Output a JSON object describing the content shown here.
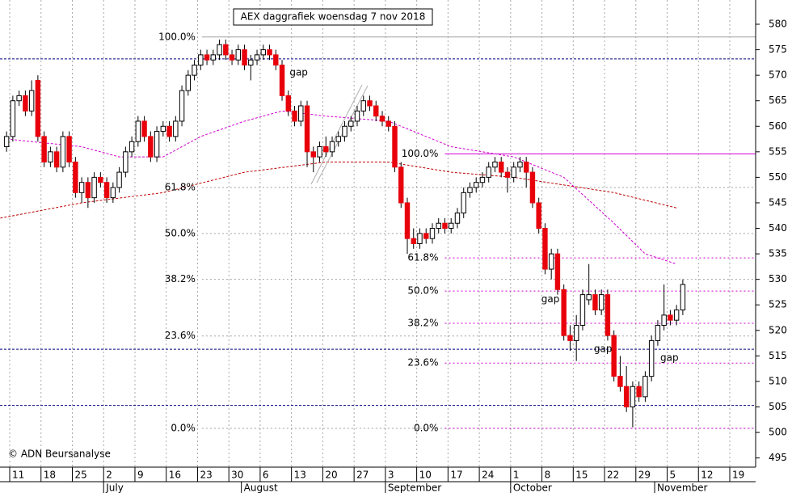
{
  "chart_data": {
    "type": "candlestick",
    "title": "AEX daggrafiek woensdag 7 nov 2018",
    "copyright": "© ADN Beursanalyse",
    "up_color": "#ffffff",
    "down_color": "#e8000b",
    "ylim": [
      493.2,
      584.75
    ],
    "yticks": [
      495,
      500,
      505,
      510,
      515,
      520,
      525,
      530,
      535,
      540,
      545,
      550,
      555,
      560,
      565,
      570,
      575,
      580
    ],
    "xlim": [
      -1.05,
      119.63
    ],
    "xticks": [
      {
        "value": 1,
        "label": "11"
      },
      {
        "value": 6,
        "label": "18"
      },
      {
        "value": 11,
        "label": "25"
      },
      {
        "value": 16,
        "label": "2"
      },
      {
        "value": 21,
        "label": "9"
      },
      {
        "value": 26,
        "label": "16"
      },
      {
        "value": 31,
        "label": "23"
      },
      {
        "value": 36,
        "label": "30"
      },
      {
        "value": 41,
        "label": "6"
      },
      {
        "value": 46,
        "label": "13"
      },
      {
        "value": 51,
        "label": "20"
      },
      {
        "value": 56,
        "label": "27"
      },
      {
        "value": 61,
        "label": "3"
      },
      {
        "value": 66,
        "label": "10"
      },
      {
        "value": 71,
        "label": "17"
      },
      {
        "value": 76,
        "label": "24"
      },
      {
        "value": 81,
        "label": "1"
      },
      {
        "value": 86,
        "label": "8"
      },
      {
        "value": 91,
        "label": "15"
      },
      {
        "value": 96,
        "label": "22"
      },
      {
        "value": 101,
        "label": "29"
      },
      {
        "value": 106,
        "label": "5"
      },
      {
        "value": 111,
        "label": "12"
      },
      {
        "value": 116,
        "label": "19"
      }
    ],
    "months": [
      {
        "value": 16,
        "label": "July"
      },
      {
        "value": 38,
        "label": "August"
      },
      {
        "value": 61,
        "label": "September"
      },
      {
        "value": 81,
        "label": "October"
      },
      {
        "value": 104,
        "label": "November"
      }
    ],
    "candles": [
      [
        556,
        559,
        555,
        558
      ],
      [
        558,
        566,
        557,
        565
      ],
      [
        565,
        567,
        564,
        566
      ],
      [
        566,
        567,
        562,
        563
      ],
      [
        563,
        569,
        562,
        567
      ],
      [
        569,
        570,
        557,
        558
      ],
      [
        558,
        559,
        552,
        553
      ],
      [
        553,
        556,
        552,
        555
      ],
      [
        555,
        556,
        551,
        552
      ],
      [
        552,
        559,
        551,
        558
      ],
      [
        558,
        559,
        552,
        553
      ],
      [
        553,
        554,
        546,
        547
      ],
      [
        547,
        550,
        545,
        549
      ],
      [
        549,
        550,
        544,
        546
      ],
      [
        546,
        551,
        545,
        550
      ],
      [
        550,
        551,
        548,
        549
      ],
      [
        549,
        550,
        545,
        546
      ],
      [
        546,
        549,
        545,
        548
      ],
      [
        548,
        552,
        547,
        551
      ],
      [
        551,
        556,
        550,
        555
      ],
      [
        555,
        558,
        554,
        557
      ],
      [
        557,
        562,
        556,
        561
      ],
      [
        561,
        562,
        557,
        558
      ],
      [
        558,
        559,
        553,
        554
      ],
      [
        554,
        560,
        553,
        559
      ],
      [
        559,
        561,
        558,
        560
      ],
      [
        560,
        561,
        557,
        558
      ],
      [
        558,
        562,
        557,
        561
      ],
      [
        561,
        568,
        560,
        567
      ],
      [
        567,
        571,
        566,
        570
      ],
      [
        570,
        573,
        569,
        572
      ],
      [
        572,
        575,
        571,
        574
      ],
      [
        574,
        575,
        572,
        573
      ],
      [
        573,
        575,
        572,
        574
      ],
      [
        574,
        577,
        573,
        576
      ],
      [
        576,
        577,
        573,
        574
      ],
      [
        574,
        575,
        572,
        573
      ],
      [
        573,
        576,
        572,
        575
      ],
      [
        575,
        576,
        571,
        572
      ],
      [
        572,
        574,
        569,
        573
      ],
      [
        573,
        575,
        572,
        574
      ],
      [
        574,
        576,
        573,
        575
      ],
      [
        575,
        576,
        573,
        574
      ],
      [
        574,
        575,
        571,
        572
      ],
      [
        572,
        573,
        565,
        566
      ],
      [
        566,
        567,
        562,
        563
      ],
      [
        563,
        564,
        560,
        561
      ],
      [
        561,
        565,
        560,
        564
      ],
      [
        564,
        565,
        552,
        555
      ],
      [
        555,
        556,
        551,
        554
      ],
      [
        554,
        557,
        553,
        556
      ],
      [
        556,
        558,
        554,
        555
      ],
      [
        555,
        558,
        554,
        557
      ],
      [
        557,
        559,
        556,
        558
      ],
      [
        558,
        561,
        557,
        560
      ],
      [
        560,
        562,
        559,
        561
      ],
      [
        561,
        564,
        560,
        563
      ],
      [
        563,
        566,
        562,
        565
      ],
      [
        565,
        566,
        563,
        564
      ],
      [
        564,
        565,
        561,
        562
      ],
      [
        562,
        563,
        560,
        561
      ],
      [
        561,
        562,
        559,
        560
      ],
      [
        560,
        561,
        551,
        552
      ],
      [
        552,
        553,
        544,
        545
      ],
      [
        545,
        546,
        535,
        538
      ],
      [
        538,
        540,
        536,
        537
      ],
      [
        537,
        540,
        536,
        539
      ],
      [
        539,
        540,
        537,
        538
      ],
      [
        538,
        541,
        537,
        540
      ],
      [
        540,
        542,
        539,
        541
      ],
      [
        541,
        542,
        539,
        540
      ],
      [
        540,
        542,
        539,
        541
      ],
      [
        541,
        544,
        540,
        543
      ],
      [
        543,
        548,
        542,
        547
      ],
      [
        547,
        549,
        546,
        548
      ],
      [
        548,
        550,
        547,
        549
      ],
      [
        549,
        551,
        548,
        550
      ],
      [
        550,
        553,
        549,
        552
      ],
      [
        552,
        554,
        551,
        553
      ],
      [
        553,
        554,
        550,
        551
      ],
      [
        551,
        552,
        547,
        550
      ],
      [
        550,
        553,
        549,
        552
      ],
      [
        552,
        554,
        551,
        553
      ],
      [
        553,
        554,
        548,
        551
      ],
      [
        551,
        552,
        544,
        545
      ],
      [
        545,
        546,
        539,
        540
      ],
      [
        540,
        541,
        531,
        532
      ],
      [
        532,
        536,
        530,
        535
      ],
      [
        535,
        536,
        527,
        528
      ],
      [
        528,
        529,
        518,
        519
      ],
      [
        519,
        521,
        516,
        518
      ],
      [
        518,
        523,
        514,
        521
      ],
      [
        521,
        528,
        520,
        527
      ],
      [
        526,
        533,
        525,
        527
      ],
      [
        527,
        528,
        523,
        524
      ],
      [
        524,
        528,
        523,
        527
      ],
      [
        527,
        528,
        518,
        519
      ],
      [
        519,
        520,
        510,
        511
      ],
      [
        511,
        515,
        508,
        509
      ],
      [
        509,
        513,
        504,
        505
      ],
      [
        505,
        510,
        501,
        509
      ],
      [
        509,
        510,
        506,
        507
      ],
      [
        507,
        512,
        506,
        511
      ],
      [
        511,
        519,
        510,
        518
      ],
      [
        518,
        522,
        517,
        521
      ],
      [
        521,
        529,
        520,
        523
      ],
      [
        523,
        524,
        521,
        522
      ],
      [
        522,
        525,
        521,
        524
      ],
      [
        524,
        530,
        523,
        529
      ]
    ],
    "moving_averages": [
      {
        "color": "#c00000",
        "x": [
          -1,
          12,
          25,
          38,
          51,
          61,
          71,
          81,
          97,
          107
        ],
        "values": [
          542,
          545,
          547,
          551,
          553,
          553,
          551,
          550,
          547,
          544
        ]
      },
      {
        "color": "#d000d0",
        "x": [
          0,
          12,
          18,
          25,
          31,
          38,
          44,
          51,
          61,
          71,
          81,
          89,
          97,
          102,
          107
        ],
        "values": [
          557.5,
          556,
          554,
          554,
          558,
          561,
          563,
          562,
          561,
          556,
          554,
          550,
          541,
          535,
          533
        ]
      }
    ],
    "levels": [
      {
        "value": 573.2,
        "color": "#000080"
      },
      {
        "value": 516.3,
        "color": "#000080"
      },
      {
        "value": 505.3,
        "color": "#000080"
      }
    ],
    "fibs": [
      {
        "color": "#a0a0a0",
        "label_color": "#909090",
        "x_from": 31.2,
        "levels": [
          {
            "value": 577.5,
            "label": "100.0%",
            "solid": true
          },
          {
            "value": 548.0,
            "label": "61.8%"
          },
          {
            "value": 539.0,
            "label": "50.0%"
          },
          {
            "value": 530.0,
            "label": "38.2%"
          },
          {
            "value": 518.9,
            "label": "23.6%"
          },
          {
            "value": 500.8,
            "label": "0.0%"
          }
        ]
      },
      {
        "color": "#d000d0",
        "label_color": "#d000d0",
        "x_from": 70,
        "levels": [
          {
            "value": 554.6,
            "label": "100.0%",
            "solid": true
          },
          {
            "value": 534.2,
            "label": "61.8%"
          },
          {
            "value": 527.7,
            "label": "50.0%"
          },
          {
            "value": 521.4,
            "label": "38.2%"
          },
          {
            "value": 513.6,
            "label": "23.6%"
          },
          {
            "value": 500.8,
            "label": "0.0%"
          }
        ]
      }
    ],
    "annotations": [
      {
        "text": "gap",
        "x": 45.2,
        "y": 570.5,
        "color": "#000000"
      },
      {
        "text": "gap",
        "x": 85.4,
        "y": 526.1,
        "color": "#b0b0b0"
      },
      {
        "text": "gap",
        "x": 93.8,
        "y": 516.3,
        "color": "#b0b0b0"
      },
      {
        "text": "gap",
        "x": 104.4,
        "y": 514.6,
        "color": "#000000"
      }
    ]
  }
}
